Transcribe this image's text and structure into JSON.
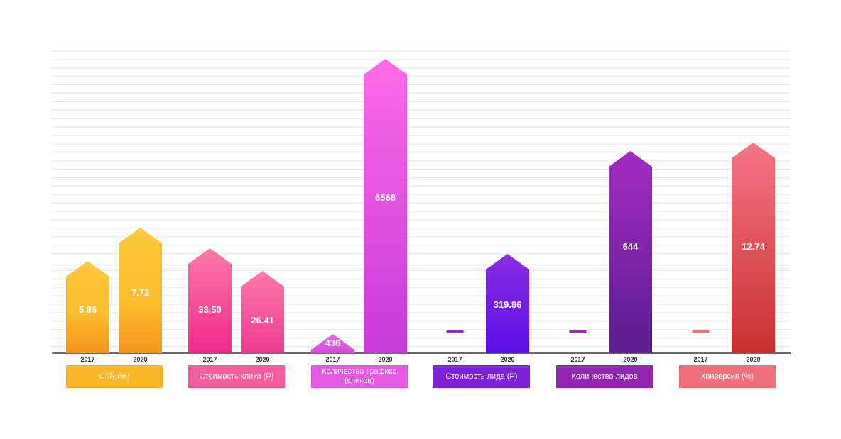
{
  "chart_data": {
    "type": "bar",
    "x_labels": [
      "2017",
      "2020"
    ],
    "grid": true,
    "groups": [
      {
        "label": "CTR (%)",
        "color": "#f9b629",
        "bars": [
          {
            "x": "2017",
            "value": 5.86,
            "label": "5.86"
          },
          {
            "x": "2020",
            "value": 7.72,
            "label": "7.72"
          }
        ]
      },
      {
        "label": "Стоимость клика (Р)",
        "color": "#f45d9c",
        "bars": [
          {
            "x": "2017",
            "value": 33.5,
            "label": "33.50"
          },
          {
            "x": "2020",
            "value": 26.41,
            "label": "26.41"
          }
        ]
      },
      {
        "label": "Количество трафика (кликов)",
        "color": "#e45ae0",
        "bars": [
          {
            "x": "2017",
            "value": 436,
            "label": "436"
          },
          {
            "x": "2020",
            "value": 6568,
            "label": "6568"
          }
        ]
      },
      {
        "label": "Стоимость лида (Р)",
        "color": "#7e22d8",
        "bars": [
          {
            "x": "2017",
            "value": null,
            "label": ""
          },
          {
            "x": "2020",
            "value": 319.86,
            "label": "319.86"
          }
        ]
      },
      {
        "label": "Количество лидов",
        "color": "#9125b0",
        "bars": [
          {
            "x": "2017",
            "value": null,
            "label": ""
          },
          {
            "x": "2020",
            "value": 644,
            "label": "644"
          }
        ]
      },
      {
        "label": "Конверсия (%)",
        "color": "#ef6f7d",
        "bars": [
          {
            "x": "2017",
            "value": null,
            "label": ""
          },
          {
            "x": "2020",
            "value": 12.74,
            "label": "12.74"
          }
        ]
      }
    ]
  }
}
